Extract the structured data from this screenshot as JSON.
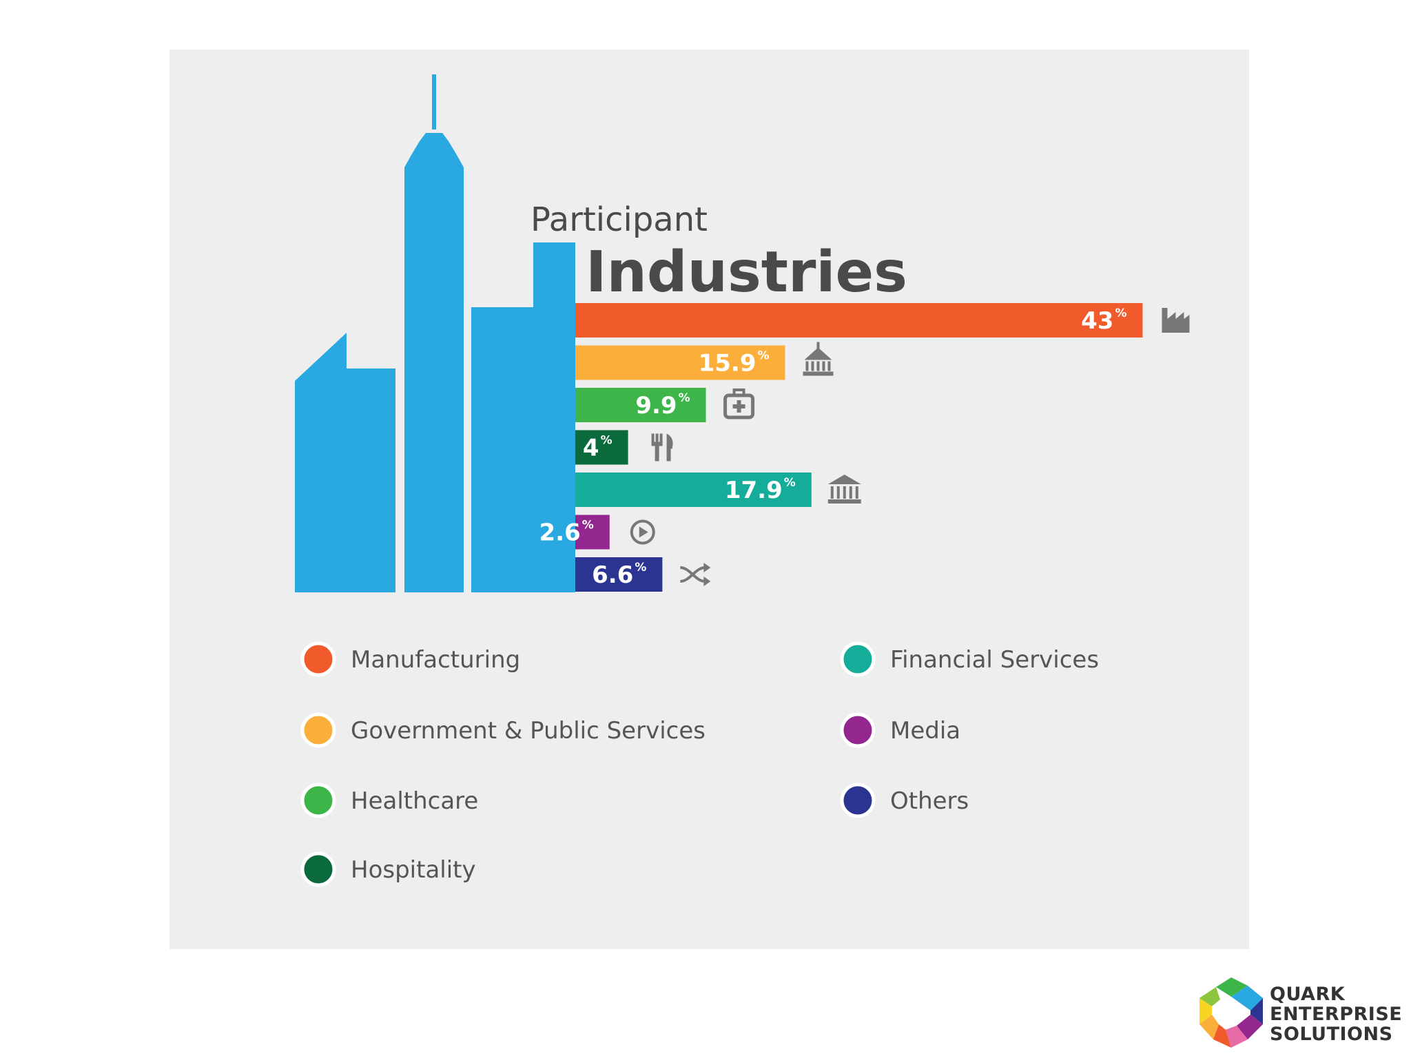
{
  "chart_data": {
    "type": "bar",
    "orientation": "horizontal",
    "title": "Participant",
    "subtitle": "Industries",
    "categories": [
      "Manufacturing",
      "Government & Public Services",
      "Healthcare",
      "Hospitality",
      "Financial Services",
      "Media",
      "Others"
    ],
    "values": [
      43,
      15.9,
      9.9,
      4,
      17.9,
      2.6,
      6.6
    ],
    "value_labels": [
      "43",
      "15.9",
      "9.9",
      "4",
      "17.9",
      "2.6",
      "6.6"
    ],
    "unit": "%",
    "colors": [
      "#f15a2b",
      "#fbae3a",
      "#3db549",
      "#0b6a3c",
      "#15ad9a",
      "#94278f",
      "#2b3591"
    ],
    "icons": [
      "factory-icon",
      "government-building-icon",
      "first-aid-kit-icon",
      "fork-knife-icon",
      "bank-icon",
      "play-icon",
      "shuffle-icon"
    ],
    "legend": {
      "columns": 2,
      "placement": "bottom",
      "entries": [
        {
          "label": "Manufacturing",
          "color": "#f15a2b"
        },
        {
          "label": "Government & Public Services",
          "color": "#fbae3a"
        },
        {
          "label": "Healthcare",
          "color": "#3db549"
        },
        {
          "label": "Hospitality",
          "color": "#0b6a3c"
        },
        {
          "label": "Financial Services",
          "color": "#15ad9a"
        },
        {
          "label": "Media",
          "color": "#94278f"
        },
        {
          "label": "Others",
          "color": "#2b3591"
        }
      ]
    },
    "background_color": "#eeeeef",
    "skyline_color": "#29a8e1",
    "grid": false
  },
  "logo": {
    "lines": [
      "QUARK",
      "ENTERPRISE",
      "SOLUTIONS"
    ]
  }
}
